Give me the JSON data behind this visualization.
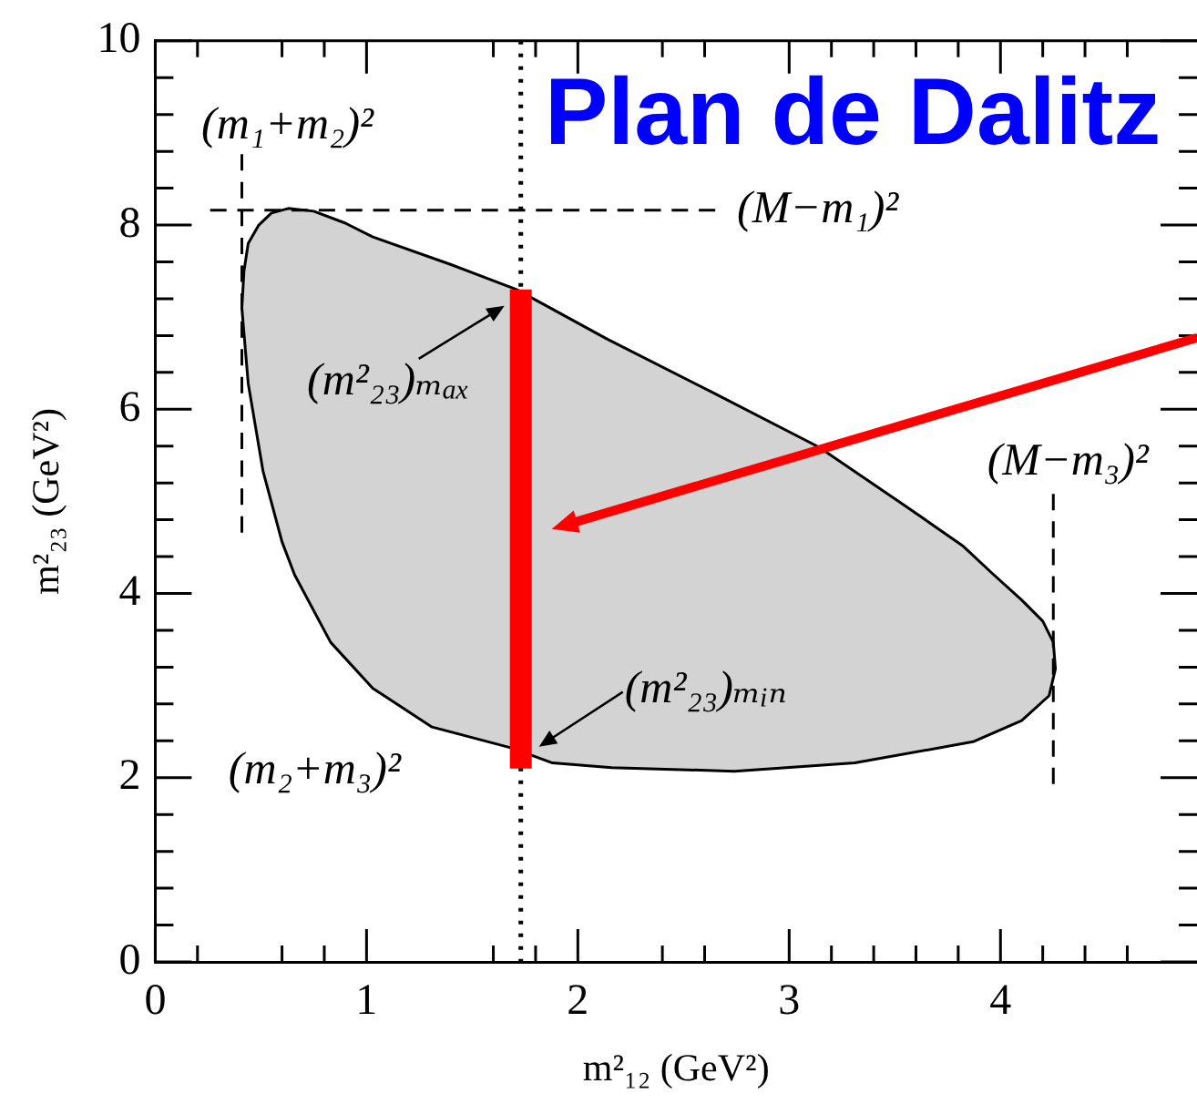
{
  "chart_data": {
    "type": "line",
    "title": "Plan de Dalitz",
    "xlabel": "m²₁₂ (GeV²)",
    "ylabel": "m²₂₃ (GeV²)",
    "xlim": [
      0,
      4.93
    ],
    "ylim": [
      0,
      10
    ],
    "xticks": [
      0,
      {
        "value": 0.2,
        "label": null
      },
      {
        "value": 0.6,
        "label": null
      },
      {
        "value": 0.8,
        "label": null
      },
      1,
      {
        "value": 1.6,
        "label": null
      },
      {
        "value": 1.8,
        "label": null
      },
      2,
      {
        "value": 2.4,
        "label": null
      },
      {
        "value": 2.6,
        "label": null
      },
      3,
      {
        "value": 3.2,
        "label": null
      },
      {
        "value": 3.4,
        "label": null
      },
      {
        "value": 3.6,
        "label": null
      },
      {
        "value": 3.8,
        "label": null
      },
      4,
      {
        "value": 4.2,
        "label": null
      },
      {
        "value": 4.4,
        "label": null
      },
      {
        "value": 4.6,
        "label": null
      }
    ],
    "yticks": [
      0,
      {
        "value": 0.4,
        "label": null
      },
      {
        "value": 0.8,
        "label": null
      },
      {
        "value": 1.2,
        "label": null
      },
      {
        "value": 1.6,
        "label": null
      },
      2,
      {
        "value": 2.4,
        "label": null
      },
      {
        "value": 2.8,
        "label": null
      },
      {
        "value": 3.2,
        "label": null
      },
      {
        "value": 3.6,
        "label": null
      },
      4,
      {
        "value": 4.4,
        "label": null
      },
      {
        "value": 4.8,
        "label": null
      },
      {
        "value": 5.2,
        "label": null
      },
      {
        "value": 5.6,
        "label": null
      },
      6,
      {
        "value": 6.4,
        "label": null
      },
      {
        "value": 6.8,
        "label": null
      },
      {
        "value": 7.2,
        "label": null
      },
      {
        "value": 7.6,
        "label": null
      },
      8,
      {
        "value": 8.4,
        "label": null
      },
      {
        "value": 8.8,
        "label": null
      },
      {
        "value": 9.2,
        "label": null
      },
      {
        "value": 9.6,
        "label": null
      },
      10
    ],
    "marker": "none",
    "series": [
      {
        "type": "area",
        "color": "#d3d3d3",
        "x": [
          0.41,
          0.42,
          0.44,
          0.49,
          0.55,
          0.63,
          0.75,
          0.9,
          1.03,
          1.4,
          1.71,
          2.14,
          2.64,
          3.14,
          3.55,
          3.82,
          3.96,
          4.1,
          4.2,
          4.25,
          4.26,
          4.23,
          4.1,
          3.87,
          3.31,
          2.74,
          2.16,
          1.88,
          1.69,
          1.31,
          1.03,
          0.83,
          0.66,
          0.6,
          0.51,
          0.44,
          0.41
        ],
        "values": [
          7.1,
          7.5,
          7.8,
          8.0,
          8.13,
          8.18,
          8.15,
          8.02,
          7.87,
          7.57,
          7.3,
          6.76,
          6.18,
          5.59,
          4.95,
          4.52,
          4.22,
          3.93,
          3.7,
          3.47,
          3.18,
          2.89,
          2.62,
          2.39,
          2.16,
          2.07,
          2.11,
          2.16,
          2.32,
          2.55,
          2.97,
          3.47,
          4.2,
          4.56,
          5.33,
          6.28,
          7.1
        ]
      },
      {
        "type": "line",
        "color": "#ff0000",
        "x": [
          1.73,
          1.73
        ],
        "values": [
          2.1,
          7.3
        ]
      },
      {
        "type": "line",
        "color": "#000000",
        "line_style": "dashed",
        "x": [
          0.41,
          0.41
        ],
        "values": [
          4.66,
          8.77
        ]
      },
      {
        "type": "line",
        "color": "#000000",
        "line_style": "dashed",
        "x": [
          0.26,
          2.65
        ],
        "values": [
          8.16,
          8.16
        ]
      },
      {
        "type": "line",
        "color": "#000000",
        "line_style": "dashed",
        "x": [
          4.25,
          4.25
        ],
        "values": [
          1.93,
          5.08
        ]
      }
    ],
    "ref_lines": [
      {
        "axis": "x",
        "value": 1.73,
        "color": "#000000",
        "line_style": "dotted"
      }
    ],
    "annotations": [
      {
        "text": "(m₁+m₂)²",
        "x": 0.41,
        "y": 8.77
      },
      {
        "text": "(M−m₁)²",
        "x": 2.65,
        "y": 8.16
      },
      {
        "text": "(M−m₃)²",
        "x": 4.25,
        "y": 5.08
      },
      "(m₂+m₃)²",
      {
        "text": "(m²₂₃)ₘₐₓ",
        "x": 1.73,
        "y": 7.3
      },
      {
        "text": "(m²₂₃)ₘᵢₙ",
        "x": 1.73,
        "y": 2.1
      }
    ]
  }
}
